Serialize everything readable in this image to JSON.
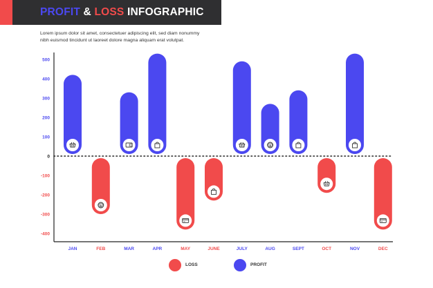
{
  "header": {
    "title_profit": "PROFIT",
    "title_amp": "&",
    "title_loss": "LOSS",
    "title_infographic": "INFOGRAPHIC",
    "description_part1": "Lorem ipsum dolor sit amet, consectetuer adipiscing elit, sed diam nonummy",
    "description_part2": "nibh euismod tincidunt ut laoreet dolore magna aliquam erat volutpat."
  },
  "legend": {
    "loss_label": "LOSS",
    "profit_label": "PROFIT"
  },
  "colors": {
    "profit": "#4b48f0",
    "loss": "#f14b4b",
    "axis": "#222222",
    "title_bg": "#2f2f31"
  },
  "chart_data": {
    "type": "bar",
    "title": "PROFIT & LOSS INFOGRAPHIC",
    "xlabel": "",
    "ylabel": "",
    "ylim": [
      -450,
      550
    ],
    "yticks": [
      500,
      400,
      300,
      200,
      100,
      0,
      -100,
      -200,
      -300,
      -400
    ],
    "categories": [
      "JAN",
      "FEB",
      "MAR",
      "APR",
      "MAY",
      "JUNE",
      "JULY",
      "AUG",
      "SEPT",
      "OCT",
      "NOV",
      "DEC"
    ],
    "values": [
      420,
      -300,
      330,
      530,
      -380,
      -230,
      490,
      270,
      340,
      -190,
      530,
      -380
    ],
    "icons": [
      "basket-icon",
      "coin-icon",
      "wallet-icon",
      "shopping-bag-icon",
      "credit-card-icon",
      "shopping-bag-icon",
      "basket-icon",
      "coin-icon",
      "shopping-bag-icon",
      "basket-icon",
      "shopping-bag-icon",
      "credit-card-icon"
    ],
    "series_legend": [
      {
        "name": "LOSS",
        "color": "#f14b4b"
      },
      {
        "name": "PROFIT",
        "color": "#4b48f0"
      }
    ]
  }
}
